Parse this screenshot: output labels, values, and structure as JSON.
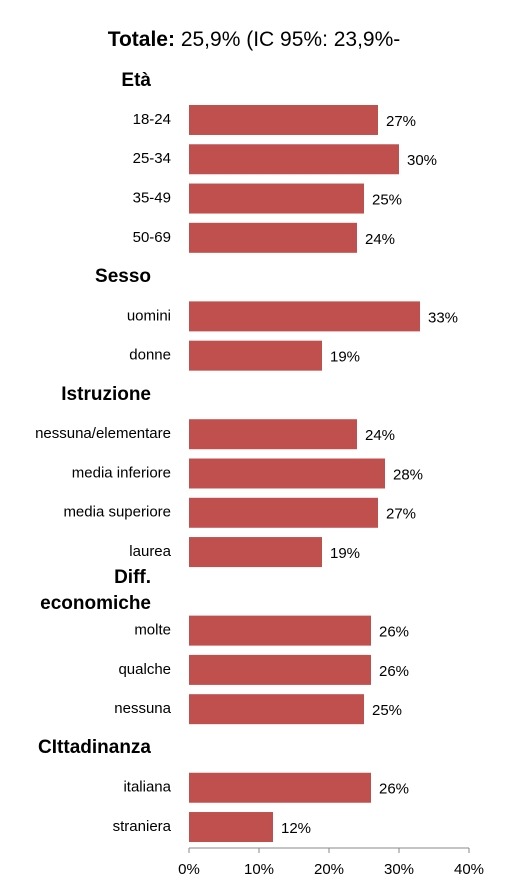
{
  "chart_data": {
    "type": "bar",
    "orientation": "horizontal",
    "title": [
      "Totale:",
      "25,9% (IC 95%: 23,9%-"
    ],
    "color": "#c0504d",
    "groups": [
      {
        "name": "Età",
        "categories": [
          "18-24",
          "25-34",
          "35-49",
          "50-69"
        ],
        "values": [
          27,
          30,
          25,
          24
        ],
        "value_labels": [
          "27%",
          "30%",
          "25%",
          "24%"
        ]
      },
      {
        "name": "Sesso",
        "categories": [
          "uomini",
          "donne"
        ],
        "values": [
          33,
          19
        ],
        "value_labels": [
          "33%",
          "19%"
        ]
      },
      {
        "name": "Istruzione",
        "categories": [
          "nessuna/elementare",
          "media inferiore",
          "media superiore",
          "laurea"
        ],
        "values": [
          24,
          28,
          27,
          19
        ],
        "value_labels": [
          "24%",
          "28%",
          "27%",
          "19%"
        ]
      },
      {
        "name": "Diff. economiche",
        "categories": [
          "molte",
          "qualche",
          "nessuna"
        ],
        "values": [
          26,
          26,
          25
        ],
        "value_labels": [
          "26%",
          "26%",
          "25%"
        ]
      },
      {
        "name": "CIttadinanza",
        "categories": [
          "italiana",
          "straniera"
        ],
        "values": [
          26,
          12
        ],
        "value_labels": [
          "26%",
          "12%"
        ]
      }
    ],
    "xlim": [
      0,
      40
    ],
    "xticks": [
      {
        "value": 0,
        "label": "0%"
      },
      {
        "value": 10,
        "label": "10%"
      },
      {
        "value": 20,
        "label": "20%"
      },
      {
        "value": 30,
        "label": "30%"
      },
      {
        "value": 40,
        "label": "40%"
      }
    ],
    "grid": false
  }
}
